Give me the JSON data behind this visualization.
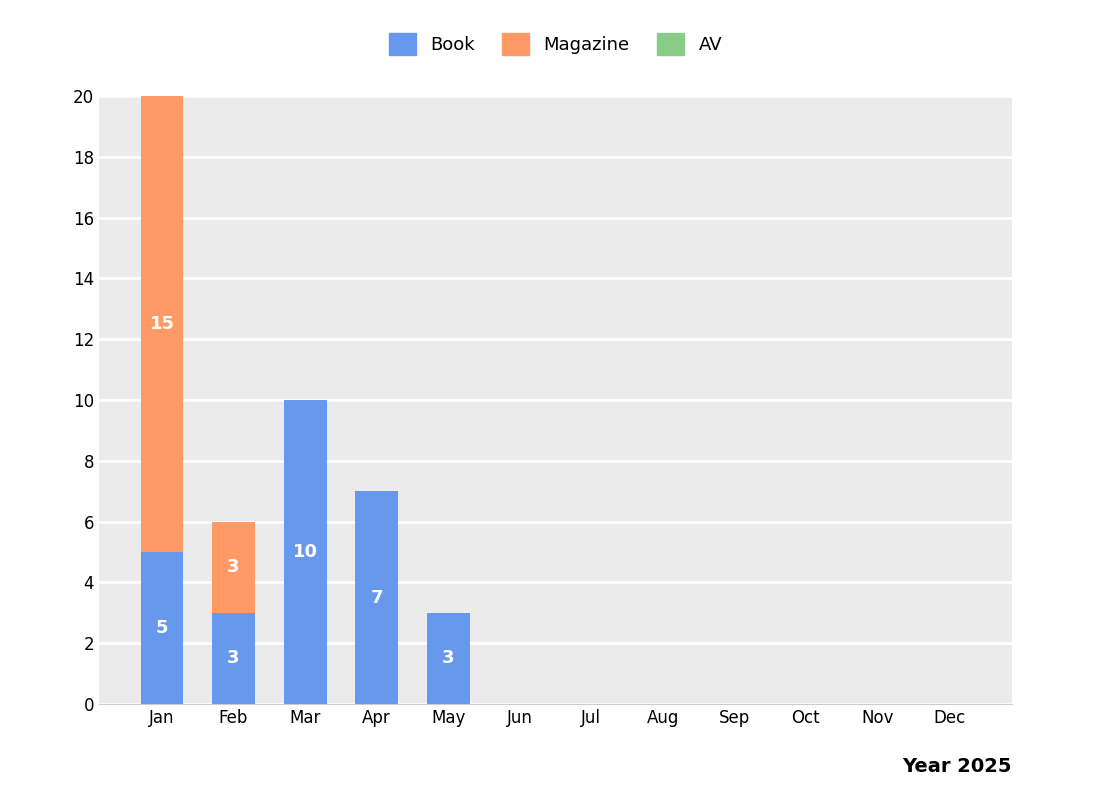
{
  "months": [
    "Jan",
    "Feb",
    "Mar",
    "Apr",
    "May",
    "Jun",
    "Jul",
    "Aug",
    "Sep",
    "Oct",
    "Nov",
    "Dec"
  ],
  "book_values": [
    5,
    3,
    10,
    7,
    3,
    0,
    0,
    0,
    0,
    0,
    0,
    0
  ],
  "magazine_values": [
    15,
    3,
    0,
    0,
    0,
    0,
    0,
    0,
    0,
    0,
    0,
    0
  ],
  "av_values": [
    0,
    0,
    0,
    0,
    0,
    0,
    0,
    0,
    0,
    0,
    0,
    0
  ],
  "book_color": "#6699EE",
  "magazine_color": "#FF9966",
  "av_color": "#88CC88",
  "book_label": "Book",
  "magazine_label": "Magazine",
  "av_label": "AV",
  "xlabel": "Year 2025",
  "ylim": [
    0,
    20
  ],
  "yticks": [
    0,
    2,
    4,
    6,
    8,
    10,
    12,
    14,
    16,
    18,
    20
  ],
  "bar_label_color": "white",
  "bar_label_fontsize": 13,
  "legend_fontsize": 13,
  "plot_bg_color": "#EBEBEB",
  "fig_bg_color": "#FFFFFF",
  "grid_color": "#FFFFFF",
  "grid_linewidth": 2.0,
  "bar_width": 0.6,
  "tick_fontsize": 12
}
